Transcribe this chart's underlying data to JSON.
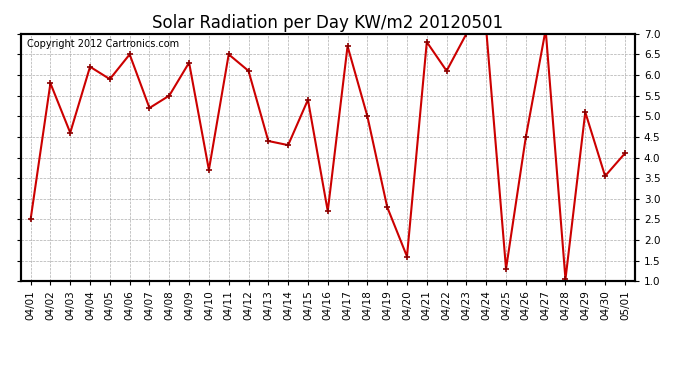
{
  "title": "Solar Radiation per Day KW/m2 20120501",
  "copyright": "Copyright 2012 Cartronics.com",
  "dates": [
    "04/01",
    "04/02",
    "04/03",
    "04/04",
    "04/05",
    "04/06",
    "04/07",
    "04/08",
    "04/09",
    "04/10",
    "04/11",
    "04/12",
    "04/13",
    "04/14",
    "04/15",
    "04/16",
    "04/17",
    "04/18",
    "04/19",
    "04/20",
    "04/21",
    "04/22",
    "04/23",
    "04/24",
    "04/25",
    "04/26",
    "04/27",
    "04/28",
    "04/29",
    "04/30",
    "05/01"
  ],
  "values": [
    2.5,
    5.8,
    4.6,
    6.2,
    5.9,
    6.5,
    5.2,
    5.5,
    6.3,
    3.7,
    6.5,
    6.1,
    4.4,
    4.3,
    5.4,
    2.7,
    6.7,
    5.0,
    2.8,
    1.6,
    6.8,
    6.1,
    7.0,
    7.1,
    1.3,
    4.5,
    7.1,
    1.05,
    5.1,
    3.55,
    4.1
  ],
  "line_color": "#cc0000",
  "bg_color": "#ffffff",
  "plot_bg_color": "#ffffff",
  "grid_color": "#999999",
  "ylim": [
    1.0,
    7.0
  ],
  "yticks": [
    1.0,
    1.5,
    2.0,
    2.5,
    3.0,
    3.5,
    4.0,
    4.5,
    5.0,
    5.5,
    6.0,
    6.5,
    7.0
  ],
  "title_fontsize": 12,
  "copyright_fontsize": 7,
  "tick_fontsize": 7.5
}
